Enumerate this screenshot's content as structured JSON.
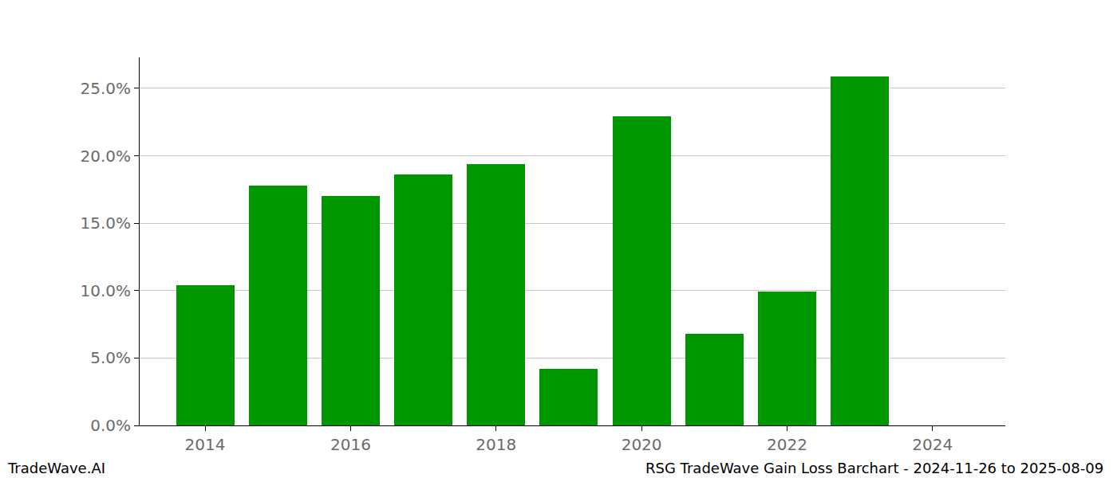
{
  "chart_data": {
    "type": "bar",
    "x": [
      2014,
      2015,
      2016,
      2017,
      2018,
      2019,
      2020,
      2021,
      2022,
      2023
    ],
    "values": [
      10.4,
      17.8,
      17.0,
      18.6,
      19.4,
      4.2,
      22.9,
      6.8,
      9.9,
      25.9
    ],
    "color": "#009600",
    "xlim": [
      2013.1,
      2025.0
    ],
    "xticks": [
      2014,
      2016,
      2018,
      2020,
      2022,
      2024
    ],
    "ylim": [
      0,
      27.3
    ],
    "yticks": [
      {
        "value": 0,
        "label": "0.0%"
      },
      {
        "value": 5,
        "label": "5.0%"
      },
      {
        "value": 10,
        "label": "10.0%"
      },
      {
        "value": 15,
        "label": "15.0%"
      },
      {
        "value": 20,
        "label": "20.0%"
      },
      {
        "value": 25,
        "label": "25.0%"
      }
    ],
    "grid": true,
    "annotations": [
      "TradeWave.AI",
      "RSG TradeWave Gain Loss Barchart - 2024-11-26 to 2025-08-09"
    ]
  }
}
